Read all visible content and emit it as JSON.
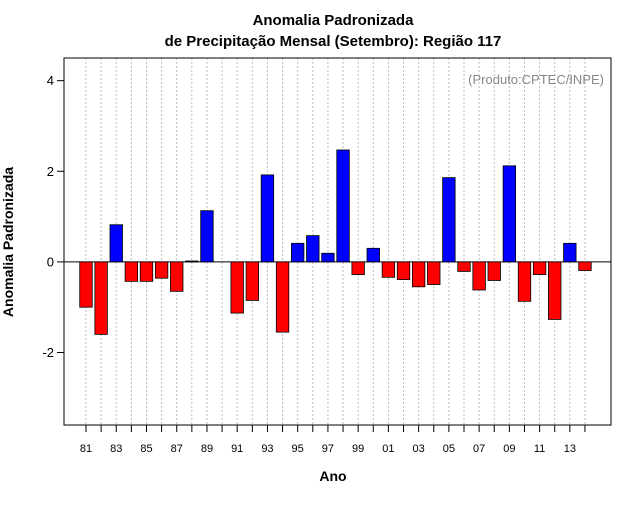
{
  "chart_data": {
    "type": "bar",
    "title": "Anomalia Padronizada",
    "subtitle": "de Precipitação Mensal (Setembro): Região 117",
    "xlabel": "Ano",
    "ylabel": "Anomalia Padronizada",
    "annotation": "(Produto:CPTEC/INPE)",
    "ylim": [
      -3.6,
      4.5
    ],
    "yticks": [
      -2,
      0,
      2,
      4
    ],
    "yticklabels": [
      "-2",
      "0",
      "2",
      "4"
    ],
    "xtick_labels": [
      "81",
      "83",
      "85",
      "87",
      "89",
      "91",
      "93",
      "95",
      "97",
      "99",
      "01",
      "03",
      "05",
      "07",
      "09",
      "11",
      "13"
    ],
    "grid": true,
    "colors": {
      "positive": "#0000ff",
      "negative": "#ff0000",
      "grid": "#bbbbbb"
    },
    "categories": [
      "1981",
      "1982",
      "1983",
      "1984",
      "1985",
      "1986",
      "1987",
      "1988",
      "1989",
      "1990",
      "1991",
      "1992",
      "1993",
      "1994",
      "1995",
      "1996",
      "1997",
      "1998",
      "1999",
      "2000",
      "2001",
      "2002",
      "2003",
      "2004",
      "2005",
      "2006",
      "2007",
      "2008",
      "2009",
      "2010",
      "2011",
      "2012",
      "2013",
      "2014"
    ],
    "values": [
      -1.0,
      -1.6,
      0.82,
      -0.43,
      -0.43,
      -0.36,
      -0.65,
      0.02,
      1.13,
      0.0,
      -1.13,
      -0.85,
      1.92,
      -1.55,
      0.41,
      0.58,
      0.19,
      2.47,
      -0.28,
      0.3,
      -0.34,
      -0.39,
      -0.55,
      -0.5,
      1.86,
      -0.21,
      -0.62,
      -0.41,
      2.12,
      -0.87,
      -0.28,
      -1.27,
      0.41,
      -0.19
    ]
  }
}
